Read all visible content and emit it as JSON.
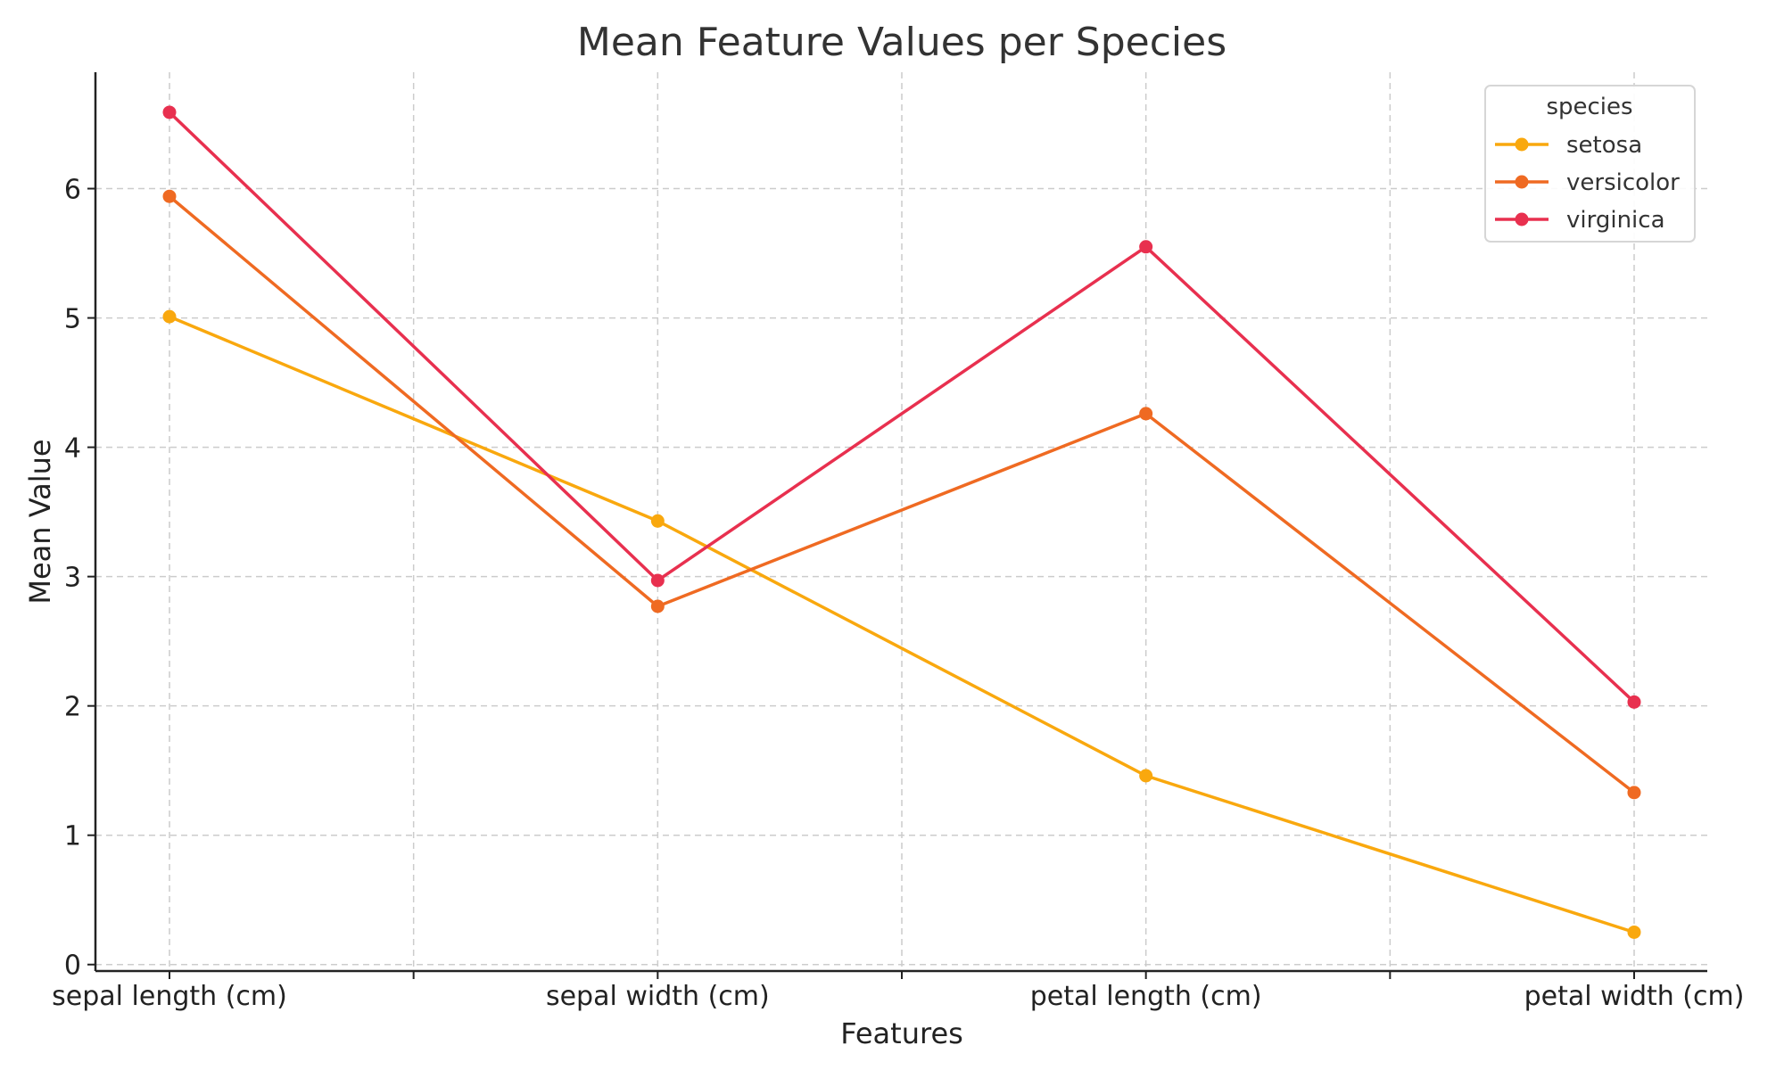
{
  "chart_data": {
    "type": "line",
    "title": "Mean Feature Values per Species",
    "xlabel": "Features",
    "ylabel": "Mean Value",
    "categories": [
      "sepal length (cm)",
      "sepal width (cm)",
      "petal length (cm)",
      "petal width (cm)"
    ],
    "ylim": [
      -0.05,
      6.9
    ],
    "yticks": [
      0,
      1,
      2,
      3,
      4,
      5,
      6
    ],
    "grid": true,
    "legend": {
      "title": "species",
      "placement": "top-right"
    },
    "series": [
      {
        "name": "setosa",
        "color": "#F9A80E",
        "values": [
          5.01,
          3.43,
          1.46,
          0.25
        ]
      },
      {
        "name": "versicolor",
        "color": "#EF6A22",
        "values": [
          5.94,
          2.77,
          4.26,
          1.33
        ]
      },
      {
        "name": "virginica",
        "color": "#E8304F",
        "values": [
          6.59,
          2.97,
          5.55,
          2.03
        ]
      }
    ]
  }
}
